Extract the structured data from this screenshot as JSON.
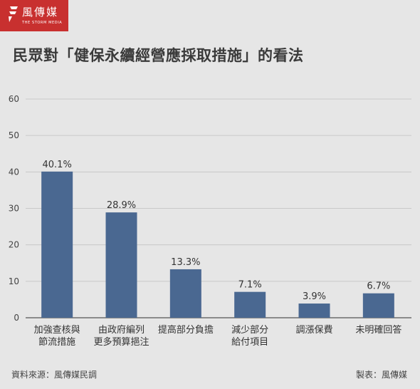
{
  "brand": {
    "name": "風傳媒",
    "tagline": "THE STORM MEDIA",
    "color": "#c8302f"
  },
  "title": "民眾對「健保永續經營應採取措施」的看法",
  "footer": {
    "source": "資料來源：風傳媒民調",
    "producer": "製表：風傳媒"
  },
  "chart_data": {
    "type": "bar",
    "title": "民眾對「健保永續經營應採取措施」的看法",
    "xlabel": "",
    "ylabel": "",
    "ylim": [
      0,
      60
    ],
    "yticks": [
      0,
      10,
      20,
      30,
      40,
      50,
      60
    ],
    "grid": true,
    "legend": "none",
    "bar_color": "#4a6891",
    "categories": [
      [
        "加強查核與",
        "節流措施"
      ],
      [
        "由政府編列",
        "更多預算挹注"
      ],
      [
        "提高部分負擔"
      ],
      [
        "減少部分",
        "給付項目"
      ],
      [
        "調漲保費"
      ],
      [
        "未明確回答"
      ]
    ],
    "values": [
      40.1,
      28.9,
      13.3,
      7.1,
      3.9,
      6.7
    ],
    "value_labels": [
      "40.1%",
      "28.9%",
      "13.3%",
      "7.1%",
      "3.9%",
      "6.7%"
    ]
  }
}
